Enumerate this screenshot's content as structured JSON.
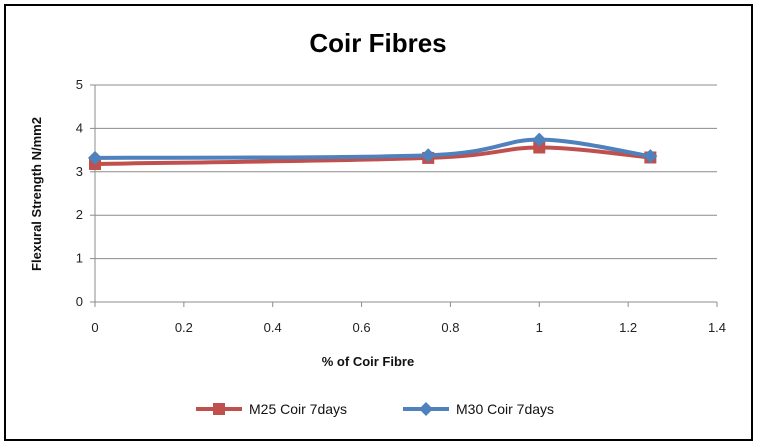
{
  "chart_data": {
    "type": "line",
    "title": "Coir Fibres",
    "xlabel": "% of Coir Fibre",
    "ylabel": "Flexural Strength  N/mm2",
    "xlim": [
      0,
      1.4
    ],
    "ylim": [
      0,
      5
    ],
    "xticks": [
      0,
      0.2,
      0.4,
      0.6,
      0.8,
      1,
      1.2,
      1.4
    ],
    "xtick_labels": [
      "0",
      "0.2",
      "0.4",
      "0.6",
      "0.8",
      "1",
      "1.2",
      "1.4"
    ],
    "yticks": [
      0,
      1,
      2,
      3,
      4,
      5
    ],
    "ytick_labels": [
      "0",
      "1",
      "2",
      "3",
      "4",
      "5"
    ],
    "grid": "horizontal",
    "legend": "bottom",
    "series": [
      {
        "name": "M25 Coir 7days",
        "color": "#c0504d",
        "marker": "square",
        "x": [
          0,
          0.75,
          1,
          1.25
        ],
        "values": [
          3.18,
          3.32,
          3.56,
          3.33
        ]
      },
      {
        "name": "M30 Coir 7days",
        "color": "#4f81bd",
        "marker": "diamond",
        "x": [
          0,
          0.75,
          1,
          1.25
        ],
        "values": [
          3.32,
          3.38,
          3.74,
          3.36
        ]
      }
    ]
  }
}
